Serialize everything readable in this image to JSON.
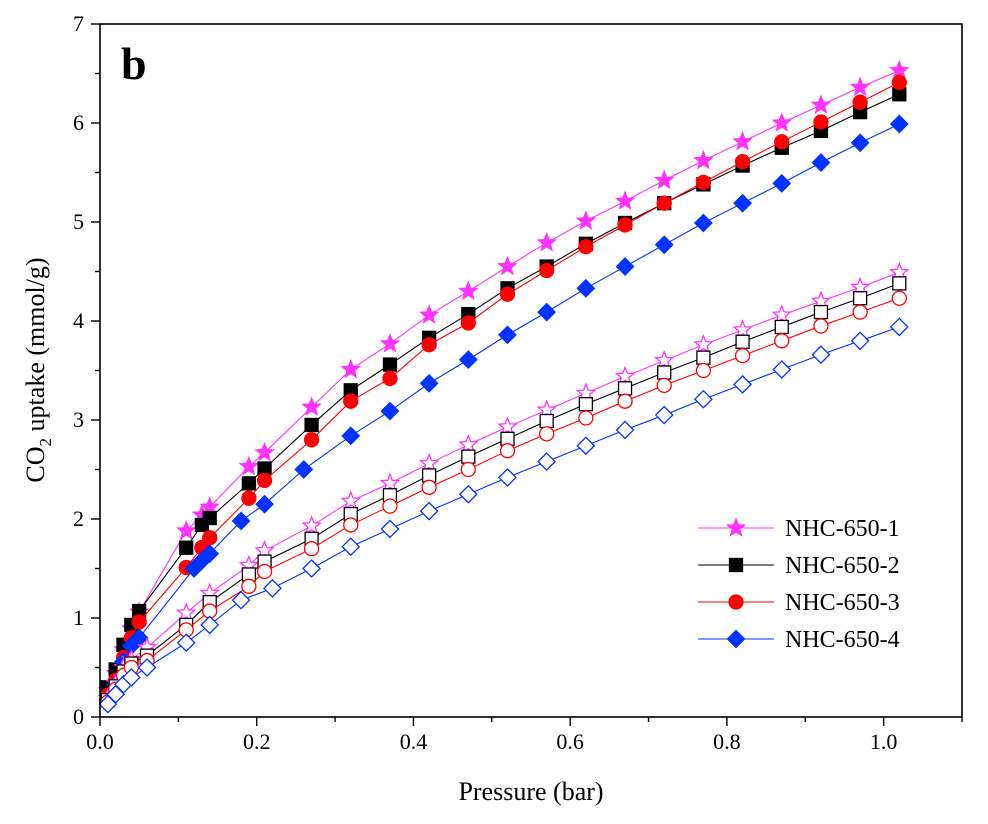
{
  "panel_label": "b",
  "chart_data": {
    "type": "scatter",
    "title": "",
    "xlabel": "Pressure (bar)",
    "ylabel_prefix": "CO",
    "ylabel_sub": "2",
    "ylabel_suffix": " uptake (mmol/g)",
    "xlim": [
      0,
      1.1
    ],
    "ylim": [
      0,
      7
    ],
    "x_ticks": [
      0.0,
      0.2,
      0.4,
      0.6,
      0.8,
      1.0
    ],
    "x_tick_labels": [
      "0.0",
      "0.2",
      "0.4",
      "0.6",
      "0.8",
      "1.0"
    ],
    "y_ticks": [
      0,
      1,
      2,
      3,
      4,
      5,
      6,
      7
    ],
    "y_tick_labels": [
      "0",
      "1",
      "2",
      "3",
      "4",
      "5",
      "6",
      "7"
    ],
    "grid": false,
    "legend_position": "bottom-right",
    "series": [
      {
        "name": "NHC-650-1",
        "color": "#ff33ff",
        "marker": "star",
        "filled": true,
        "x": [
          0.01,
          0.02,
          0.03,
          0.04,
          0.05,
          0.11,
          0.13,
          0.14,
          0.19,
          0.21,
          0.27,
          0.32,
          0.37,
          0.42,
          0.47,
          0.52,
          0.57,
          0.62,
          0.67,
          0.72,
          0.77,
          0.82,
          0.87,
          0.92,
          0.97,
          1.02
        ],
        "y": [
          0.27,
          0.44,
          0.68,
          0.89,
          1.06,
          1.88,
          2.04,
          2.12,
          2.53,
          2.67,
          3.13,
          3.51,
          3.77,
          4.06,
          4.3,
          4.55,
          4.79,
          5.01,
          5.21,
          5.42,
          5.62,
          5.81,
          6.0,
          6.18,
          6.36,
          6.53
        ]
      },
      {
        "name": "NHC-650-2",
        "color": "#000000",
        "marker": "square",
        "filled": true,
        "x": [
          0.01,
          0.02,
          0.03,
          0.04,
          0.05,
          0.11,
          0.13,
          0.14,
          0.19,
          0.21,
          0.27,
          0.32,
          0.37,
          0.42,
          0.47,
          0.52,
          0.57,
          0.62,
          0.67,
          0.72,
          0.77,
          0.82,
          0.87,
          0.92,
          0.97,
          1.02
        ],
        "y": [
          0.3,
          0.48,
          0.73,
          0.93,
          1.07,
          1.71,
          1.94,
          2.01,
          2.36,
          2.51,
          2.95,
          3.3,
          3.56,
          3.83,
          4.07,
          4.33,
          4.55,
          4.78,
          4.99,
          5.19,
          5.38,
          5.57,
          5.75,
          5.92,
          6.11,
          6.29
        ]
      },
      {
        "name": "NHC-650-3",
        "color": "#ff0000",
        "marker": "circle",
        "filled": true,
        "x": [
          0.01,
          0.02,
          0.03,
          0.04,
          0.05,
          0.11,
          0.13,
          0.14,
          0.19,
          0.21,
          0.27,
          0.32,
          0.37,
          0.42,
          0.47,
          0.52,
          0.57,
          0.62,
          0.67,
          0.72,
          0.77,
          0.82,
          0.87,
          0.92,
          0.97,
          1.02
        ],
        "y": [
          0.22,
          0.37,
          0.6,
          0.8,
          0.96,
          1.51,
          1.71,
          1.81,
          2.21,
          2.39,
          2.8,
          3.19,
          3.42,
          3.76,
          3.98,
          4.27,
          4.51,
          4.75,
          4.97,
          5.19,
          5.4,
          5.61,
          5.81,
          6.01,
          6.21,
          6.41
        ]
      },
      {
        "name": "NHC-650-4",
        "color": "#0033ff",
        "marker": "diamond",
        "filled": true,
        "x": [
          0.01,
          0.02,
          0.03,
          0.04,
          0.05,
          0.12,
          0.13,
          0.14,
          0.18,
          0.21,
          0.26,
          0.32,
          0.37,
          0.42,
          0.47,
          0.52,
          0.57,
          0.62,
          0.67,
          0.72,
          0.77,
          0.82,
          0.87,
          0.92,
          0.97,
          1.02
        ],
        "y": [
          0.17,
          0.33,
          0.56,
          0.72,
          0.8,
          1.5,
          1.58,
          1.65,
          1.98,
          2.15,
          2.5,
          2.84,
          3.09,
          3.37,
          3.61,
          3.86,
          4.09,
          4.33,
          4.55,
          4.77,
          4.99,
          5.19,
          5.39,
          5.6,
          5.8,
          5.99
        ]
      },
      {
        "name": "",
        "color": "#ff33ff",
        "marker": "star",
        "filled": false,
        "x": [
          0.01,
          0.02,
          0.03,
          0.04,
          0.06,
          0.11,
          0.14,
          0.19,
          0.21,
          0.27,
          0.32,
          0.37,
          0.42,
          0.47,
          0.52,
          0.57,
          0.62,
          0.67,
          0.72,
          0.77,
          0.82,
          0.87,
          0.92,
          0.97,
          1.02
        ],
        "y": [
          0.19,
          0.34,
          0.5,
          0.58,
          0.7,
          1.05,
          1.25,
          1.53,
          1.68,
          1.93,
          2.18,
          2.36,
          2.56,
          2.75,
          2.93,
          3.1,
          3.27,
          3.44,
          3.6,
          3.76,
          3.91,
          4.06,
          4.2,
          4.34,
          4.49
        ]
      },
      {
        "name": "",
        "color": "#000000",
        "marker": "square",
        "filled": false,
        "x": [
          0.01,
          0.02,
          0.03,
          0.04,
          0.06,
          0.11,
          0.14,
          0.19,
          0.21,
          0.27,
          0.32,
          0.37,
          0.42,
          0.47,
          0.52,
          0.57,
          0.62,
          0.67,
          0.72,
          0.77,
          0.82,
          0.87,
          0.92,
          0.97,
          1.02
        ],
        "y": [
          0.17,
          0.31,
          0.46,
          0.54,
          0.62,
          0.93,
          1.16,
          1.44,
          1.57,
          1.8,
          2.05,
          2.24,
          2.44,
          2.63,
          2.81,
          2.99,
          3.16,
          3.32,
          3.48,
          3.63,
          3.79,
          3.94,
          4.09,
          4.23,
          4.38
        ]
      },
      {
        "name": "",
        "color": "#ff0000",
        "marker": "circle",
        "filled": false,
        "x": [
          0.01,
          0.02,
          0.03,
          0.04,
          0.06,
          0.11,
          0.14,
          0.19,
          0.21,
          0.27,
          0.32,
          0.37,
          0.42,
          0.47,
          0.52,
          0.57,
          0.62,
          0.67,
          0.72,
          0.77,
          0.82,
          0.87,
          0.92,
          0.97,
          1.02
        ],
        "y": [
          0.15,
          0.28,
          0.42,
          0.5,
          0.57,
          0.88,
          1.07,
          1.32,
          1.47,
          1.7,
          1.94,
          2.13,
          2.32,
          2.5,
          2.69,
          2.86,
          3.02,
          3.19,
          3.35,
          3.5,
          3.65,
          3.8,
          3.95,
          4.09,
          4.23
        ]
      },
      {
        "name": "",
        "color": "#0033ff",
        "marker": "diamond",
        "filled": false,
        "x": [
          0.01,
          0.02,
          0.03,
          0.04,
          0.06,
          0.11,
          0.14,
          0.18,
          0.22,
          0.27,
          0.32,
          0.37,
          0.42,
          0.47,
          0.52,
          0.57,
          0.62,
          0.67,
          0.72,
          0.77,
          0.82,
          0.87,
          0.92,
          0.97,
          1.02
        ],
        "y": [
          0.13,
          0.23,
          0.33,
          0.4,
          0.5,
          0.75,
          0.93,
          1.18,
          1.3,
          1.5,
          1.72,
          1.9,
          2.08,
          2.25,
          2.42,
          2.58,
          2.74,
          2.9,
          3.05,
          3.21,
          3.36,
          3.51,
          3.66,
          3.8,
          3.94
        ]
      }
    ]
  }
}
